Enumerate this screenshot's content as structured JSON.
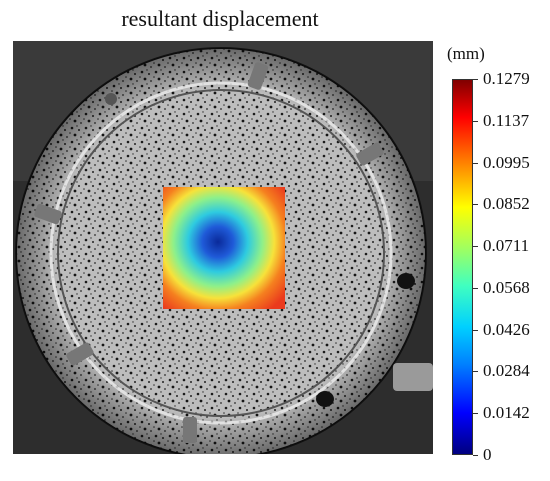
{
  "title": "resultant displacement",
  "colorbar": {
    "unit": "(mm)",
    "min": 0,
    "max": 0.1279,
    "ticks": [
      "0.1279",
      "0.1137",
      "0.0995",
      "0.0852",
      "0.0711",
      "0.0568",
      "0.0426",
      "0.0284",
      "0.0142",
      "0"
    ],
    "colormap": "jet"
  },
  "overlay": {
    "description_colors": {
      "low": "#1e3cc8",
      "mid": "#2ecbe0",
      "high": "#f0501e"
    }
  }
}
